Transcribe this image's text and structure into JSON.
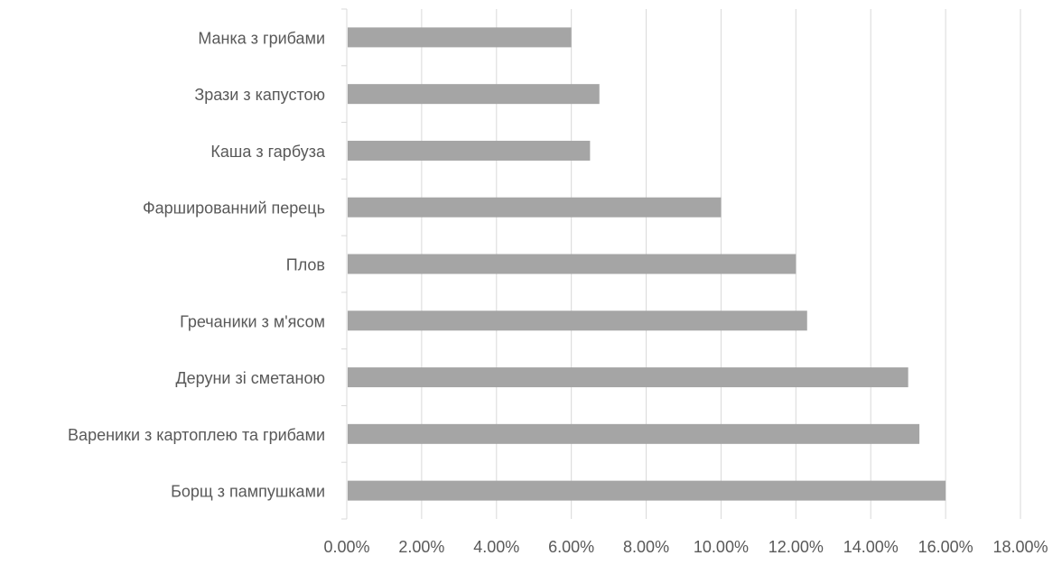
{
  "chart_data": {
    "type": "bar",
    "orientation": "horizontal",
    "categories": [
      "Манка з грибами",
      "Зрази з капустою",
      "Каша з гарбуза",
      "Фаршированний перець",
      "Плов",
      "Гречаники з м'ясом",
      "Деруни зі сметаною",
      "Вареники з картоплею та грибами",
      "Борщ з пампушками"
    ],
    "values": [
      6.0,
      6.75,
      6.5,
      10.0,
      12.0,
      12.3,
      15.0,
      15.3,
      16.0
    ],
    "value_unit": "percent",
    "xlim": [
      0,
      18
    ],
    "x_ticks": [
      0,
      2,
      4,
      6,
      8,
      10,
      12,
      14,
      16,
      18
    ],
    "x_tick_labels": [
      "0.00%",
      "2.00%",
      "4.00%",
      "6.00%",
      "8.00%",
      "10.00%",
      "12.00%",
      "14.00%",
      "16.00%",
      "18.00%"
    ],
    "title": "",
    "xlabel": "",
    "ylabel": "",
    "grid": "vertical",
    "legend": "none",
    "bar_color": "#a5a5a5",
    "grid_color": "#d9d9d9",
    "text_color": "#595959"
  }
}
